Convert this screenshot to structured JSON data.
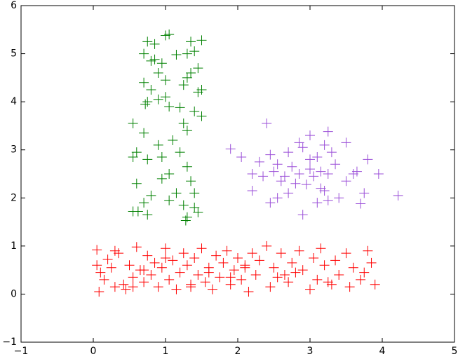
{
  "chart_data": {
    "type": "scatter",
    "marker": "+",
    "xlim": [
      -1,
      5
    ],
    "ylim": [
      -1,
      6
    ],
    "xticks": [
      {
        "value": -1,
        "label": "−1"
      },
      0,
      1,
      2,
      3,
      4,
      5
    ],
    "yticks": [
      {
        "value": -1,
        "label": "−1"
      },
      0,
      1,
      2,
      3,
      4,
      5,
      6
    ],
    "grid": false,
    "series": [
      {
        "color": "#ff0000",
        "x": [
          0.05,
          0.08,
          0.1,
          0.15,
          0.2,
          0.25,
          0.3,
          0.35,
          0.42,
          0.45,
          0.5,
          0.55,
          0.6,
          0.65,
          0.7,
          0.75,
          0.8,
          0.85,
          0.9,
          0.95,
          1.0,
          1.05,
          1.1,
          1.15,
          1.2,
          1.25,
          1.3,
          1.35,
          1.4,
          1.45,
          1.5,
          1.55,
          1.6,
          1.65,
          1.7,
          1.75,
          1.8,
          1.85,
          1.9,
          1.95,
          2.0,
          2.05,
          2.1,
          2.15,
          2.2,
          2.25,
          2.3,
          2.4,
          2.45,
          2.5,
          2.55,
          2.6,
          2.7,
          2.75,
          2.8,
          2.85,
          2.9,
          3.0,
          3.05,
          3.1,
          3.15,
          3.2,
          3.3,
          3.35,
          3.4,
          3.5,
          3.55,
          3.6,
          3.7,
          3.8,
          3.85,
          3.9,
          0.3,
          0.7,
          1.0,
          1.35,
          1.6,
          2.1,
          2.65,
          3.25,
          3.75,
          0.05,
          0.55,
          1.9
        ],
        "values": [
          0.92,
          0.05,
          0.45,
          0.3,
          0.72,
          0.55,
          0.15,
          0.85,
          0.2,
          0.1,
          0.6,
          0.35,
          0.98,
          0.5,
          0.25,
          0.8,
          0.4,
          0.65,
          0.15,
          0.55,
          0.95,
          0.3,
          0.7,
          0.1,
          0.45,
          0.85,
          0.6,
          0.2,
          0.75,
          0.4,
          0.95,
          0.25,
          0.55,
          0.1,
          0.8,
          0.35,
          0.65,
          0.9,
          0.2,
          0.5,
          0.75,
          0.3,
          0.6,
          0.05,
          0.85,
          0.4,
          0.7,
          1.0,
          0.15,
          0.55,
          0.35,
          0.85,
          0.25,
          0.65,
          0.45,
          0.9,
          0.5,
          0.1,
          0.75,
          0.3,
          0.95,
          0.6,
          0.2,
          0.7,
          0.4,
          0.85,
          0.15,
          0.55,
          0.3,
          0.9,
          0.65,
          0.2,
          0.9,
          0.5,
          0.75,
          0.15,
          0.45,
          0.55,
          0.4,
          0.25,
          0.45,
          0.6,
          0.15,
          0.35
        ]
      },
      {
        "color": "#008000",
        "x": [
          1.0,
          1.05,
          0.75,
          0.85,
          1.35,
          1.5,
          1.4,
          1.3,
          0.7,
          1.15,
          0.85,
          0.8,
          0.95,
          1.45,
          0.9,
          1.35,
          1.3,
          1.0,
          0.7,
          1.25,
          0.8,
          1.5,
          1.45,
          1.0,
          0.75,
          0.72,
          1.05,
          0.9,
          1.2,
          1.4,
          1.5,
          0.55,
          1.25,
          1.3,
          0.7,
          1.1,
          0.9,
          0.6,
          1.2,
          0.95,
          0.55,
          0.75,
          1.3,
          1.05,
          0.95,
          1.35,
          0.6,
          1.15,
          1.4,
          0.8,
          1.05,
          0.7,
          1.25,
          1.4,
          0.55,
          0.62,
          0.75,
          1.3,
          1.28,
          1.45
        ],
        "values": [
          5.38,
          5.4,
          5.25,
          5.2,
          5.25,
          5.28,
          5.05,
          5.0,
          5.0,
          4.98,
          4.88,
          4.85,
          4.8,
          4.7,
          4.6,
          4.6,
          4.5,
          4.45,
          4.4,
          4.35,
          4.25,
          4.25,
          4.2,
          4.1,
          4.0,
          3.95,
          3.9,
          4.05,
          3.88,
          3.8,
          3.7,
          3.55,
          3.55,
          3.4,
          3.35,
          3.2,
          3.1,
          2.95,
          2.95,
          2.85,
          2.85,
          2.8,
          2.65,
          2.5,
          2.4,
          2.35,
          2.3,
          2.1,
          2.1,
          2.05,
          1.95,
          1.9,
          1.85,
          1.8,
          1.72,
          1.72,
          1.65,
          1.6,
          1.53,
          1.7
        ]
      },
      {
        "color": "#9b4fd8",
        "x": [
          2.4,
          2.85,
          3.0,
          3.25,
          3.5,
          1.9,
          2.05,
          2.45,
          2.7,
          2.9,
          3.1,
          3.2,
          3.3,
          2.3,
          2.55,
          2.75,
          3.0,
          3.15,
          3.35,
          2.2,
          2.5,
          2.65,
          2.85,
          3.05,
          3.25,
          3.6,
          3.65,
          3.95,
          2.6,
          2.8,
          2.95,
          3.15,
          3.5,
          2.2,
          2.7,
          3.2,
          3.75,
          4.22,
          2.55,
          3.4,
          2.45,
          3.25,
          3.7,
          3.1,
          2.9,
          3.8,
          2.35,
          3.0
        ],
        "values": [
          3.55,
          3.15,
          3.3,
          3.38,
          3.15,
          3.02,
          2.85,
          2.9,
          2.95,
          3.05,
          2.85,
          3.1,
          2.95,
          2.75,
          2.7,
          2.65,
          2.6,
          2.55,
          2.7,
          2.5,
          2.55,
          2.45,
          2.5,
          2.45,
          2.5,
          2.5,
          2.55,
          2.5,
          2.35,
          2.3,
          2.28,
          2.2,
          2.35,
          2.15,
          2.1,
          2.15,
          2.1,
          2.05,
          2.0,
          2.0,
          1.9,
          1.95,
          1.88,
          1.9,
          1.65,
          2.8,
          2.45,
          2.8
        ]
      }
    ]
  }
}
